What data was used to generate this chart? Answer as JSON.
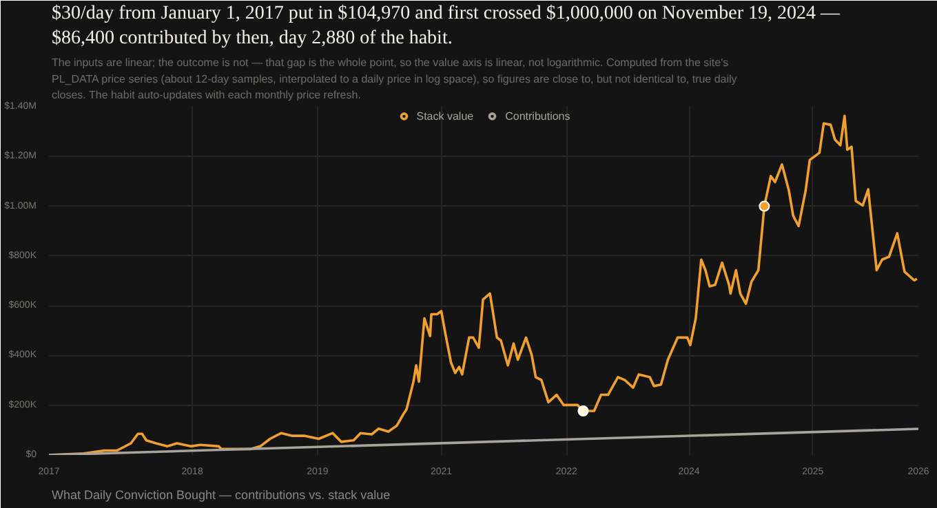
{
  "chart_data": {
    "type": "line",
    "title": "$30/day from January 1, 2017 put in $104,970 and first crossed $1,000,000 on November 19, 2024 — $86,400 contributed by then, day 2,880 of the habit.",
    "subtitle": "The inputs are linear; the outcome is not — that gap is the whole point, so the value axis is linear, not logarithmic. Computed from the site's PL_DATA price series (about 12-day samples, interpolated to a daily price in log space), so figures are close to, but not identical to, true daily closes. The habit auto-updates with each monthly price refresh.",
    "annotations": [
      "What Daily Conviction Bought — contributions vs. stack value"
    ],
    "xlim": [
      "2017-01-01",
      "2026-08-01"
    ],
    "xticks": [
      {
        "value": "2017-01-01",
        "label": "2017"
      },
      {
        "value": "2018-08-01",
        "label": "2018"
      },
      {
        "value": "2019-12-18",
        "label": "2019"
      },
      {
        "value": "2021-04-29",
        "label": "2021"
      },
      {
        "value": "2022-09-15",
        "label": "2022"
      },
      {
        "value": "2024-01-21",
        "label": "2024"
      },
      {
        "value": "2025-06-02",
        "label": "2025"
      },
      {
        "value": "2026-08-01",
        "label": "2026"
      }
    ],
    "ylim": [
      0,
      1400000
    ],
    "yticks": [
      {
        "value": 0,
        "label": "$0"
      },
      {
        "value": 200000,
        "label": "$200K"
      },
      {
        "value": 400000,
        "label": "$400K"
      },
      {
        "value": 600000,
        "label": "$600K"
      },
      {
        "value": 800000,
        "label": "$800K"
      },
      {
        "value": 1000000,
        "label": "$1.00M"
      },
      {
        "value": 1200000,
        "label": "$1.20M"
      },
      {
        "value": 1400000,
        "label": "$1.40M"
      }
    ],
    "grid": true,
    "legend": "top",
    "marker": "none",
    "line_style": "solid",
    "series": [
      {
        "name": "Stack value",
        "color": "#f0a030",
        "x": [
          "2017-01-01",
          "2017-05-21",
          "2017-08-13",
          "2017-10-02",
          "2017-11-27",
          "2017-12-25",
          "2018-01-11",
          "2018-01-28",
          "2018-03-08",
          "2018-04-22",
          "2018-05-31",
          "2018-07-26",
          "2018-09-03",
          "2018-11-15",
          "2018-11-26",
          "2019-03-24",
          "2019-05-02",
          "2019-06-10",
          "2019-07-25",
          "2019-09-08",
          "2019-10-28",
          "2019-12-23",
          "2020-02-17",
          "2020-03-22",
          "2020-05-11",
          "2020-06-08",
          "2020-07-23",
          "2020-08-20",
          "2020-09-28",
          "2020-11-01",
          "2020-11-28",
          "2020-12-10",
          "2021-01-07",
          "2021-01-18",
          "2021-01-29",
          "2021-02-20",
          "2021-03-15",
          "2021-03-20",
          "2021-04-12",
          "2021-04-29",
          "2021-05-15",
          "2021-06-07",
          "2021-06-24",
          "2021-07-10",
          "2021-07-22",
          "2021-08-19",
          "2021-09-04",
          "2021-09-27",
          "2021-10-14",
          "2021-11-11",
          "2021-12-09",
          "2021-12-25",
          "2022-01-22",
          "2022-02-14",
          "2022-03-03",
          "2022-04-05",
          "2022-04-28",
          "2022-05-14",
          "2022-06-06",
          "2022-07-04",
          "2022-08-06",
          "2022-09-03",
          "2022-10-29",
          "2022-11-21",
          "2023-01-04",
          "2023-02-01",
          "2023-03-01",
          "2023-04-10",
          "2023-05-08",
          "2023-06-10",
          "2023-07-03",
          "2023-08-16",
          "2023-09-02",
          "2023-09-30",
          "2023-10-28",
          "2023-12-06",
          "2024-01-14",
          "2024-01-26",
          "2024-02-17",
          "2024-03-10",
          "2024-03-27",
          "2024-04-13",
          "2024-05-05",
          "2024-06-02",
          "2024-06-30",
          "2024-07-06",
          "2024-07-28",
          "2024-08-14",
          "2024-09-06",
          "2024-09-28",
          "2024-10-26",
          "2024-11-19",
          "2024-12-15",
          "2025-01-01",
          "2025-01-29",
          "2025-02-26",
          "2025-03-15",
          "2025-04-06",
          "2025-05-04",
          "2025-05-21",
          "2025-06-29",
          "2025-07-16",
          "2025-08-13",
          "2025-08-30",
          "2025-09-21",
          "2025-10-08",
          "2025-10-19",
          "2025-11-05",
          "2025-11-22",
          "2025-12-20",
          "2026-01-11",
          "2026-02-14",
          "2026-03-08",
          "2026-04-05",
          "2026-05-08",
          "2026-06-06",
          "2026-07-15",
          "2026-07-26"
        ],
        "values": [
          0,
          6000,
          18000,
          18000,
          47000,
          85000,
          85000,
          59000,
          47000,
          35000,
          47000,
          35000,
          41000,
          35000,
          24000,
          24000,
          35000,
          65000,
          88000,
          77000,
          77000,
          65000,
          88000,
          53000,
          59000,
          88000,
          83000,
          106000,
          94000,
          118000,
          165000,
          183000,
          295000,
          360000,
          295000,
          549000,
          478000,
          566000,
          566000,
          578000,
          490000,
          372000,
          330000,
          354000,
          324000,
          472000,
          472000,
          431000,
          625000,
          649000,
          472000,
          460000,
          360000,
          448000,
          383000,
          472000,
          401000,
          313000,
          301000,
          212000,
          242000,
          201000,
          201000,
          177000,
          177000,
          242000,
          242000,
          313000,
          301000,
          271000,
          324000,
          313000,
          277000,
          283000,
          383000,
          472000,
          472000,
          442000,
          549000,
          785000,
          743000,
          678000,
          684000,
          773000,
          684000,
          649000,
          743000,
          649000,
          608000,
          696000,
          743000,
          1000000,
          1121000,
          1097000,
          1168000,
          1062000,
          962000,
          920000,
          1062000,
          1186000,
          1215000,
          1333000,
          1327000,
          1268000,
          1245000,
          1363000,
          1227000,
          1239000,
          1021000,
          1003000,
          1068000,
          743000,
          785000,
          797000,
          891000,
          737000,
          702000,
          708000
        ]
      },
      {
        "name": "Contributions",
        "color": "#a8a49c",
        "x": [
          "2017-01-01",
          "2026-08-01"
        ],
        "values": [
          0,
          105000
        ]
      },
      {
        "type": "scatter",
        "marker": "circle",
        "x": [
          "2022-11-21",
          "2024-11-19"
        ],
        "values": [
          177000,
          1000000
        ],
        "colors": [
          "#fff3d6",
          "#f0a030"
        ]
      }
    ]
  }
}
